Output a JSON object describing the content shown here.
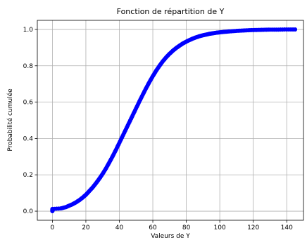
{
  "chart_data": {
    "type": "scatter",
    "title": "Fonction de répartition de Y",
    "xlabel": "Valeurs de Y",
    "ylabel": "Probabilité cumulée",
    "xlim": [
      -9,
      150
    ],
    "ylim": [
      -0.05,
      1.05
    ],
    "x_ticks": [
      0,
      20,
      40,
      60,
      80,
      100,
      120,
      140
    ],
    "y_ticks": [
      0.0,
      0.2,
      0.4,
      0.6,
      0.8,
      1.0
    ],
    "x_tick_labels": [
      "0",
      "20",
      "40",
      "60",
      "80",
      "100",
      "120",
      "140"
    ],
    "y_tick_labels": [
      "0.0",
      "0.2",
      "0.4",
      "0.6",
      "0.8",
      "1.0"
    ],
    "grid": true,
    "series": [
      {
        "color": "#0000ff",
        "points": [
          [
            0,
            0.0
          ],
          [
            0,
            0.006
          ],
          [
            0,
            0.012
          ],
          [
            5,
            0.015
          ],
          [
            8,
            0.022
          ],
          [
            10,
            0.03
          ],
          [
            12,
            0.038
          ],
          [
            14,
            0.048
          ],
          [
            16,
            0.06
          ],
          [
            18,
            0.074
          ],
          [
            20,
            0.09
          ],
          [
            22,
            0.11
          ],
          [
            24,
            0.13
          ],
          [
            26,
            0.153
          ],
          [
            28,
            0.178
          ],
          [
            30,
            0.205
          ],
          [
            32,
            0.235
          ],
          [
            34,
            0.268
          ],
          [
            36,
            0.302
          ],
          [
            38,
            0.338
          ],
          [
            40,
            0.376
          ],
          [
            42,
            0.414
          ],
          [
            44,
            0.452
          ],
          [
            46,
            0.49
          ],
          [
            48,
            0.528
          ],
          [
            50,
            0.566
          ],
          [
            52,
            0.604
          ],
          [
            54,
            0.641
          ],
          [
            56,
            0.677
          ],
          [
            58,
            0.711
          ],
          [
            60,
            0.743
          ],
          [
            62,
            0.773
          ],
          [
            64,
            0.8
          ],
          [
            66,
            0.825
          ],
          [
            68,
            0.847
          ],
          [
            70,
            0.866
          ],
          [
            72,
            0.883
          ],
          [
            74,
            0.898
          ],
          [
            76,
            0.911
          ],
          [
            78,
            0.923
          ],
          [
            80,
            0.933
          ],
          [
            82,
            0.942
          ],
          [
            84,
            0.95
          ],
          [
            86,
            0.957
          ],
          [
            88,
            0.963
          ],
          [
            90,
            0.968
          ],
          [
            92,
            0.972
          ],
          [
            94,
            0.976
          ],
          [
            96,
            0.979
          ],
          [
            98,
            0.982
          ],
          [
            100,
            0.984
          ],
          [
            103,
            0.987
          ],
          [
            106,
            0.989
          ],
          [
            110,
            0.992
          ],
          [
            114,
            0.994
          ],
          [
            118,
            0.996
          ],
          [
            122,
            0.997
          ],
          [
            126,
            0.998
          ],
          [
            130,
            0.999
          ],
          [
            135,
            0.999
          ],
          [
            140,
            1.0
          ],
          [
            145,
            1.0
          ]
        ]
      }
    ]
  }
}
